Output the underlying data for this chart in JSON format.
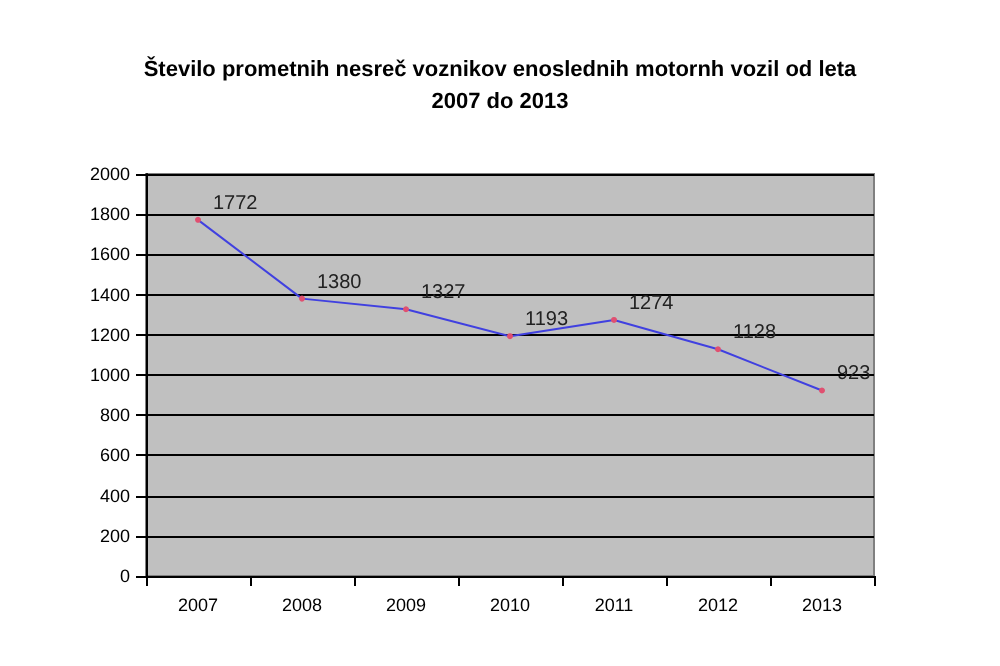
{
  "chart_data": {
    "type": "line",
    "title": "Število prometnih nesreč voznikov enoslednih motornh vozil od leta\n2007 do 2013",
    "categories": [
      "2007",
      "2008",
      "2009",
      "2010",
      "2011",
      "2012",
      "2013"
    ],
    "series": [
      {
        "color": "#4040e0",
        "values": [
          1772,
          1380,
          1327,
          1193,
          1274,
          1128,
          923
        ]
      }
    ],
    "ylim": [
      0,
      2000
    ],
    "yticks": [
      0,
      200,
      400,
      600,
      800,
      1000,
      1200,
      1400,
      1600,
      1800,
      2000
    ],
    "grid": "y",
    "data_labels": true,
    "marker": "circle"
  }
}
